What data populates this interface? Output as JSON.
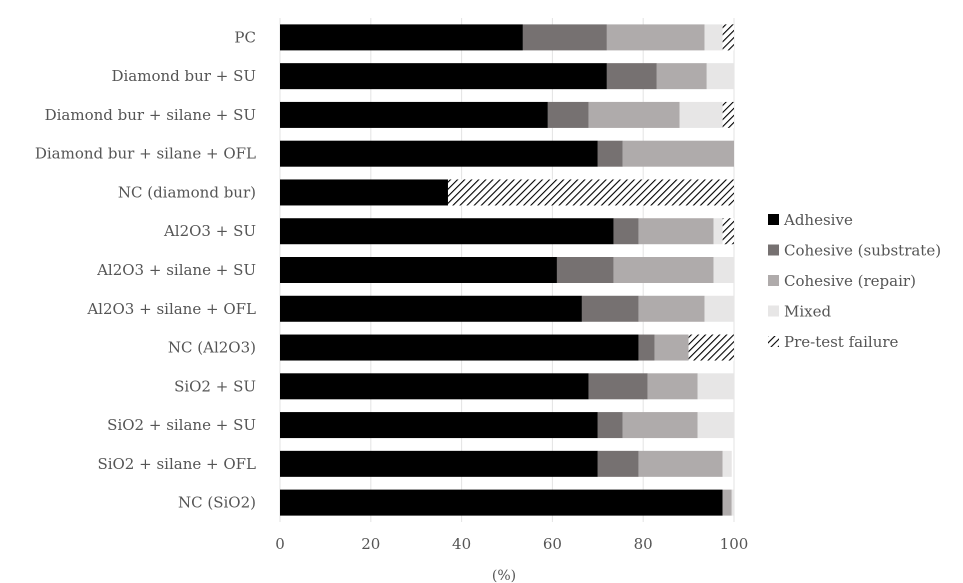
{
  "chart_data": {
    "type": "bar",
    "orientation": "horizontal",
    "stacked": true,
    "xlabel": "(%)",
    "xlim": [
      0,
      100
    ],
    "xticks": [
      0,
      20,
      40,
      60,
      80,
      100
    ],
    "grid": "vertical",
    "legend_position": "right",
    "categories": [
      "PC",
      "Diamond bur + SU",
      "Diamond bur + silane + SU",
      "Diamond bur + silane + OFL",
      "NC (diamond bur)",
      "Al2O3 + SU",
      "Al2O3 + silane + SU",
      "Al2O3 + silane + OFL",
      "NC (Al2O3)",
      "SiO2 + SU",
      "SiO2 + silane + SU",
      "SiO2 + silane + OFL",
      "NC (SiO2)"
    ],
    "series": [
      {
        "name": "Adhesive",
        "color": "#000000",
        "pattern": "solid",
        "values": [
          53.5,
          72,
          59,
          70,
          37,
          73.5,
          61,
          66.5,
          79,
          68,
          70,
          70,
          97.5
        ]
      },
      {
        "name": "Cohesive (substrate)",
        "color": "#767171",
        "pattern": "solid",
        "values": [
          18.5,
          11,
          9,
          5.5,
          0,
          5.5,
          12.5,
          12.5,
          3.5,
          13,
          5.5,
          9,
          0
        ]
      },
      {
        "name": "Cohesive (repair)",
        "color": "#afabab",
        "pattern": "solid",
        "values": [
          21.5,
          11,
          20,
          24.5,
          0,
          16.5,
          22,
          14.5,
          7.5,
          11,
          16.5,
          18.5,
          2
        ]
      },
      {
        "name": "Mixed",
        "color": "#e7e6e6",
        "pattern": "solid",
        "values": [
          4,
          6,
          9.5,
          0,
          0,
          2,
          4.5,
          6.5,
          0,
          8,
          8,
          2,
          0.5
        ]
      },
      {
        "name": "Pre-test failure",
        "color": "#000000",
        "pattern": "diagonal-hatch",
        "values": [
          2.5,
          0,
          2.5,
          0,
          63,
          2.5,
          0,
          0,
          10,
          0,
          0,
          0,
          0
        ]
      }
    ]
  }
}
